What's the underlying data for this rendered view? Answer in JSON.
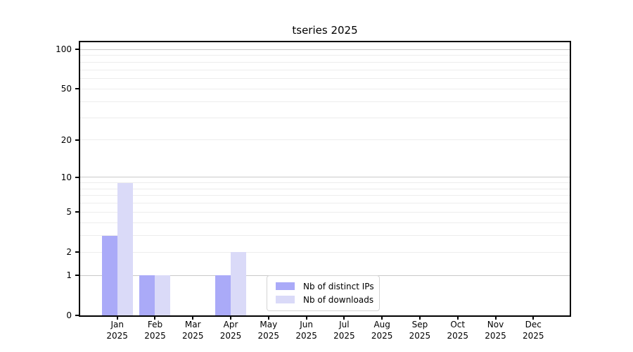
{
  "title": "tseries 2025",
  "chart_data": {
    "type": "bar",
    "title": "tseries 2025",
    "categories": [
      "Jan",
      "Feb",
      "Mar",
      "Apr",
      "May",
      "Jun",
      "Jul",
      "Aug",
      "Sep",
      "Oct",
      "Nov",
      "Dec"
    ],
    "category_year": "2025",
    "series": [
      {
        "name": "Nb of distinct IPs",
        "color": "#aaaaf8",
        "values": [
          3,
          1,
          0,
          1,
          0,
          0,
          0,
          0,
          0,
          0,
          0,
          0
        ]
      },
      {
        "name": "Nb of downloads",
        "color": "#dadaf8",
        "values": [
          9,
          1,
          0,
          2,
          0,
          0,
          0,
          0,
          0,
          0,
          0,
          0
        ]
      }
    ],
    "yscale": "log1p",
    "ytick_values": [
      0,
      1,
      2,
      5,
      10,
      20,
      50,
      100
    ],
    "minor_grid_values": [
      2,
      3,
      4,
      5,
      6,
      7,
      8,
      9,
      20,
      30,
      40,
      50,
      60,
      70,
      80,
      90
    ],
    "major_grid_values": [
      1,
      10,
      100
    ],
    "ylim": [
      0,
      113
    ],
    "grid": "horizontal",
    "legend_position": "lower-center-inside",
    "bar_color_primary": "#aaaaf8",
    "bar_color_secondary": "#dadaf8"
  }
}
